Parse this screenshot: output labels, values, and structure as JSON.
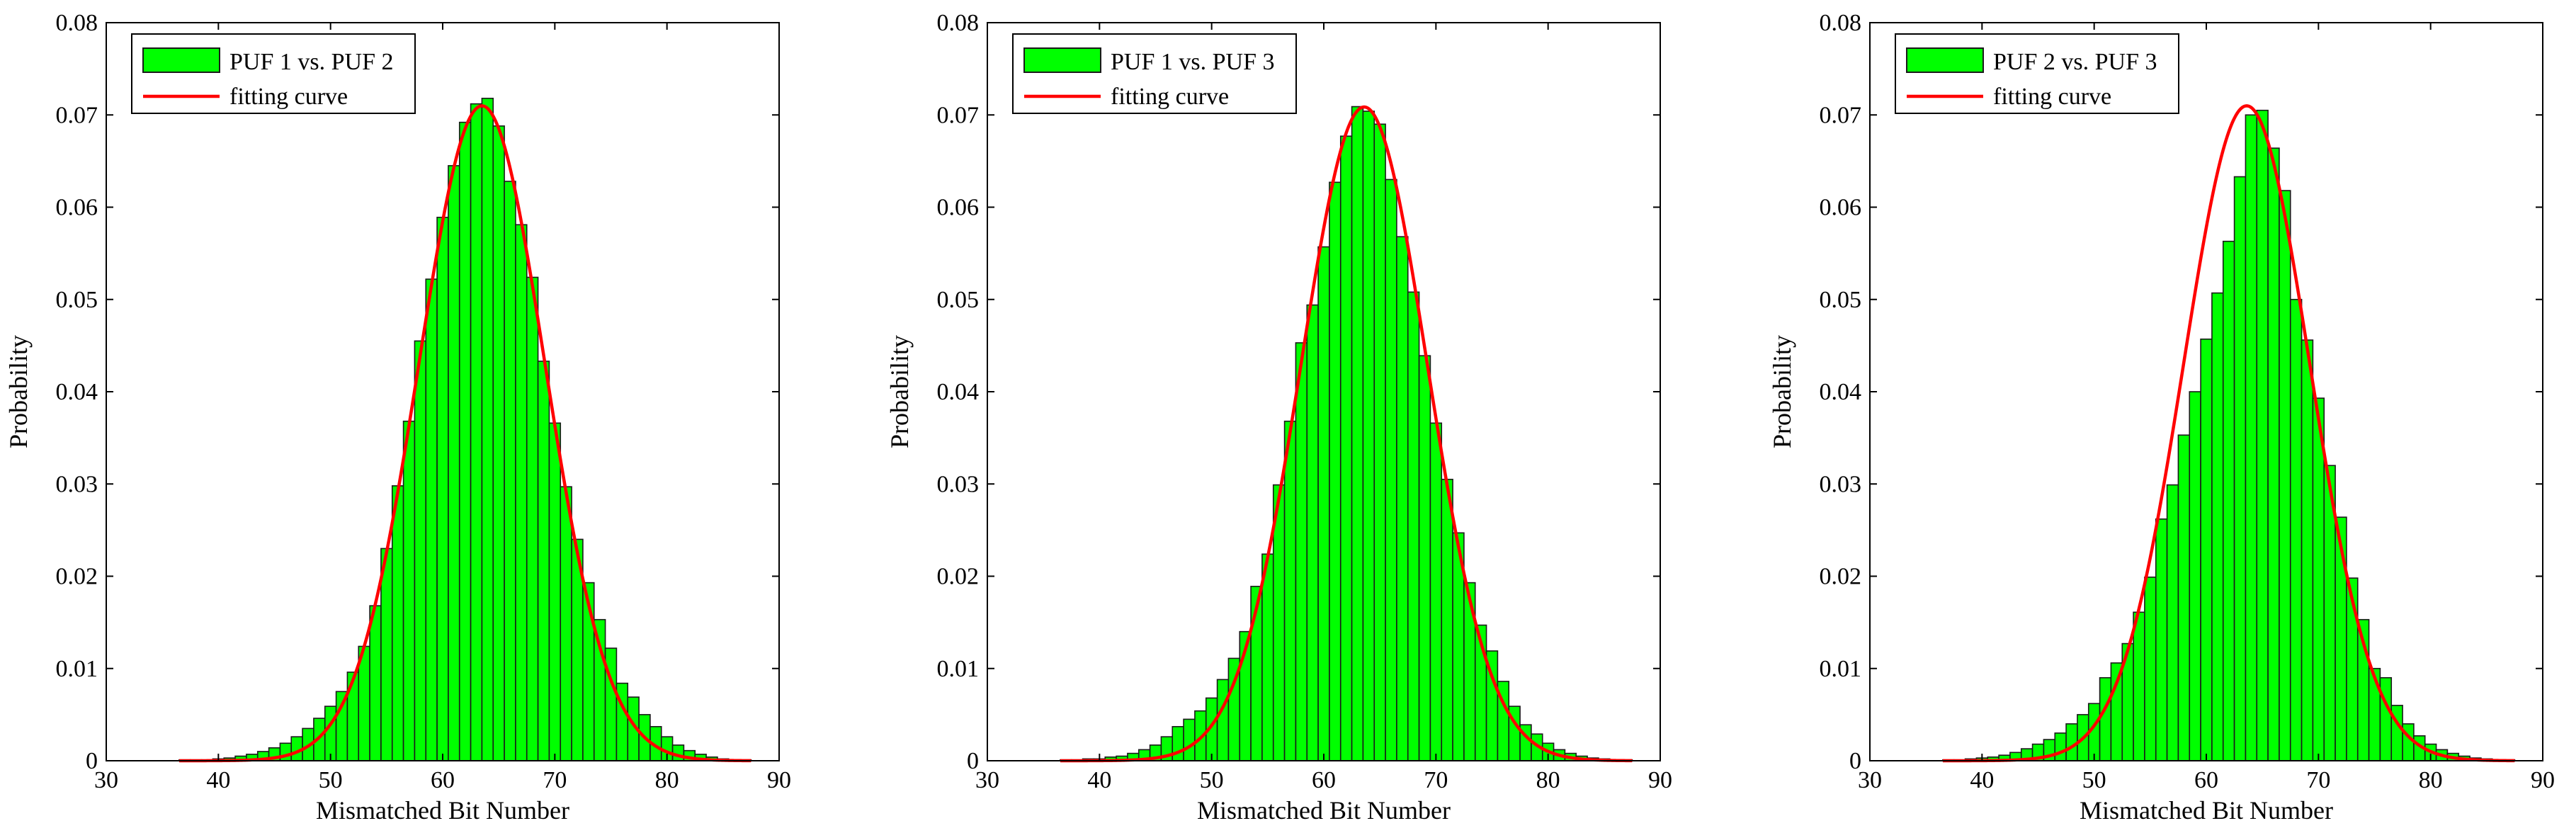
{
  "chart_data": [
    {
      "type": "bar",
      "xlabel": "Mismatched Bit Number",
      "ylabel": "Probability",
      "xlim": [
        30,
        90
      ],
      "ylim": [
        0,
        0.08
      ],
      "xticks": [
        "30",
        "40",
        "50",
        "60",
        "70",
        "80",
        "90"
      ],
      "yticks": [
        "0",
        "0.01",
        "0.02",
        "0.03",
        "0.04",
        "0.05",
        "0.06",
        "0.07",
        "0.08"
      ],
      "grid": false,
      "legend_position": "top-left",
      "bar_color": "#00ff00",
      "curve_color": "#ff0000",
      "fit": {
        "name": "fitting curve",
        "mean": 63.5,
        "std": 5.62
      },
      "series": [
        {
          "name": "PUF 1 vs. PUF 2",
          "bin_width": 1,
          "x": [
            37,
            38,
            39,
            40,
            41,
            42,
            43,
            44,
            45,
            46,
            47,
            48,
            49,
            50,
            51,
            52,
            53,
            54,
            55,
            56,
            57,
            58,
            59,
            60,
            61,
            62,
            63,
            64,
            65,
            66,
            67,
            68,
            69,
            70,
            71,
            72,
            73,
            74,
            75,
            76,
            77,
            78,
            79,
            80,
            81,
            82,
            83,
            84,
            85,
            86,
            87
          ],
          "values": [
            0.0001,
            0.0001,
            0.0001,
            0.0002,
            0.0003,
            0.0005,
            0.0007,
            0.001,
            0.0014,
            0.0019,
            0.0026,
            0.0035,
            0.0046,
            0.0059,
            0.0075,
            0.0096,
            0.0124,
            0.0168,
            0.023,
            0.0298,
            0.0368,
            0.0455,
            0.0522,
            0.0589,
            0.0645,
            0.0692,
            0.0712,
            0.0718,
            0.0688,
            0.0628,
            0.0581,
            0.0524,
            0.0433,
            0.0366,
            0.0297,
            0.024,
            0.0193,
            0.0153,
            0.0122,
            0.0084,
            0.0069,
            0.005,
            0.0037,
            0.0026,
            0.0017,
            0.0011,
            0.0007,
            0.0004,
            0.0002,
            0.0001,
            0.0001
          ]
        },
        {
          "name": "fitting curve"
        }
      ]
    },
    {
      "type": "bar",
      "xlabel": "Mismatched Bit Number",
      "ylabel": "Probability",
      "xlim": [
        30,
        90
      ],
      "ylim": [
        0,
        0.08
      ],
      "xticks": [
        "30",
        "40",
        "50",
        "60",
        "70",
        "80",
        "90"
      ],
      "yticks": [
        "0",
        "0.01",
        "0.02",
        "0.03",
        "0.04",
        "0.05",
        "0.06",
        "0.07",
        "0.08"
      ],
      "grid": false,
      "legend_position": "top-left",
      "bar_color": "#00ff00",
      "curve_color": "#ff0000",
      "fit": {
        "name": "fitting curve",
        "mean": 63.6,
        "std": 5.63
      },
      "series": [
        {
          "name": "PUF 1 vs. PUF 3",
          "bin_width": 1,
          "x": [
            37,
            38,
            39,
            40,
            41,
            42,
            43,
            44,
            45,
            46,
            47,
            48,
            49,
            50,
            51,
            52,
            53,
            54,
            55,
            56,
            57,
            58,
            59,
            60,
            61,
            62,
            63,
            64,
            65,
            66,
            67,
            68,
            69,
            70,
            71,
            72,
            73,
            74,
            75,
            76,
            77,
            78,
            79,
            80,
            81,
            82,
            83,
            84,
            85,
            86,
            87
          ],
          "values": [
            0.0001,
            0.0001,
            0.0002,
            0.0002,
            0.0004,
            0.0005,
            0.0008,
            0.0012,
            0.0017,
            0.0026,
            0.0037,
            0.0045,
            0.0054,
            0.0068,
            0.0088,
            0.0111,
            0.014,
            0.0189,
            0.0224,
            0.0299,
            0.0368,
            0.0453,
            0.0494,
            0.0557,
            0.0627,
            0.0677,
            0.0709,
            0.0704,
            0.069,
            0.063,
            0.0568,
            0.0508,
            0.0439,
            0.0366,
            0.0305,
            0.0247,
            0.0193,
            0.0147,
            0.0119,
            0.0086,
            0.0059,
            0.0039,
            0.0029,
            0.0019,
            0.0012,
            0.0008,
            0.0005,
            0.0003,
            0.0002,
            0.0001,
            0.0001
          ]
        },
        {
          "name": "fitting curve"
        }
      ]
    },
    {
      "type": "bar",
      "xlabel": "Mismatched Bit Number",
      "ylabel": "Probability",
      "xlim": [
        30,
        90
      ],
      "ylim": [
        0,
        0.08
      ],
      "xticks": [
        "30",
        "40",
        "50",
        "60",
        "70",
        "80",
        "90"
      ],
      "yticks": [
        "0",
        "0.01",
        "0.02",
        "0.03",
        "0.04",
        "0.05",
        "0.06",
        "0.07",
        "0.08"
      ],
      "grid": false,
      "legend_position": "top-left",
      "bar_color": "#00ff00",
      "curve_color": "#ff0000",
      "fit": {
        "name": "fitting curve",
        "mean": 63.6,
        "std": 5.62
      },
      "series": [
        {
          "name": "PUF 2 vs. PUF 3",
          "bin_width": 1,
          "x": [
            37,
            38,
            39,
            40,
            41,
            42,
            43,
            44,
            45,
            46,
            47,
            48,
            49,
            50,
            51,
            52,
            53,
            54,
            55,
            56,
            57,
            58,
            59,
            60,
            61,
            62,
            63,
            64,
            65,
            66,
            67,
            68,
            69,
            70,
            71,
            72,
            73,
            74,
            75,
            76,
            77,
            78,
            79,
            80,
            81,
            82,
            83,
            84,
            85,
            86,
            87
          ],
          "values": [
            0.0001,
            0.0001,
            0.0002,
            0.0003,
            0.0004,
            0.0006,
            0.0009,
            0.0013,
            0.0018,
            0.0023,
            0.003,
            0.004,
            0.005,
            0.0062,
            0.009,
            0.0106,
            0.0127,
            0.0161,
            0.0199,
            0.0262,
            0.0299,
            0.0353,
            0.04,
            0.0457,
            0.0507,
            0.0563,
            0.0633,
            0.07,
            0.0705,
            0.0664,
            0.0618,
            0.05,
            0.0456,
            0.0393,
            0.032,
            0.0264,
            0.0198,
            0.0153,
            0.01,
            0.009,
            0.006,
            0.004,
            0.0027,
            0.0018,
            0.0012,
            0.0008,
            0.0005,
            0.0003,
            0.0002,
            0.0001,
            0.0001
          ]
        },
        {
          "name": "fitting curve"
        }
      ]
    }
  ]
}
